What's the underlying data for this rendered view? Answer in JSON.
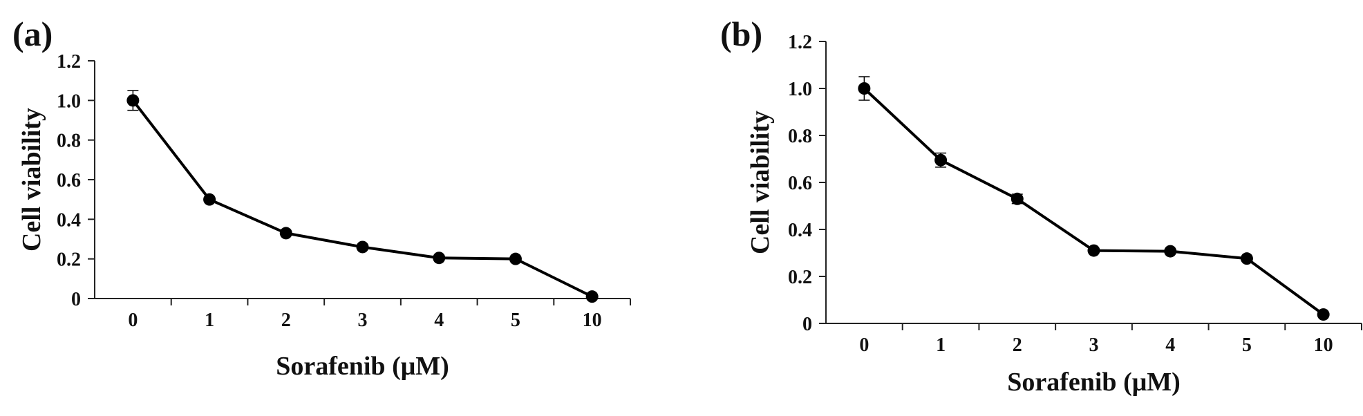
{
  "chart_data": [
    {
      "type": "line",
      "panel_label": "(a)",
      "xlabel": "Sorafenib (μM)",
      "ylabel": "Cell viability",
      "categories": [
        "0",
        "1",
        "2",
        "3",
        "4",
        "5",
        "10"
      ],
      "series": [
        {
          "values": [
            1.0,
            0.5,
            0.33,
            0.26,
            0.205,
            0.2,
            0.01
          ],
          "errors": [
            0.05,
            0.01,
            0.01,
            0.01,
            0.005,
            0.005,
            0.005
          ]
        }
      ],
      "yticks": [
        "0",
        "0.2",
        "0.4",
        "0.6",
        "0.8",
        "1.0",
        "1.2"
      ],
      "ylim": [
        0,
        1.2
      ],
      "grid": false,
      "legend": "none",
      "color": "#000000"
    },
    {
      "type": "line",
      "panel_label": "(b)",
      "xlabel": "Sorafenib (μM)",
      "ylabel": "Cell viability",
      "categories": [
        "0",
        "1",
        "2",
        "3",
        "4",
        "5",
        "10"
      ],
      "series": [
        {
          "values": [
            1.0,
            0.695,
            0.53,
            0.31,
            0.307,
            0.276,
            0.038
          ],
          "errors": [
            0.05,
            0.03,
            0.02,
            0.005,
            0.005,
            0.005,
            0.005
          ]
        }
      ],
      "yticks": [
        "0",
        "0.2",
        "0.4",
        "0.6",
        "0.8",
        "1.0",
        "1.2"
      ],
      "ylim": [
        0,
        1.2
      ],
      "grid": false,
      "legend": "none",
      "color": "#000000"
    }
  ]
}
